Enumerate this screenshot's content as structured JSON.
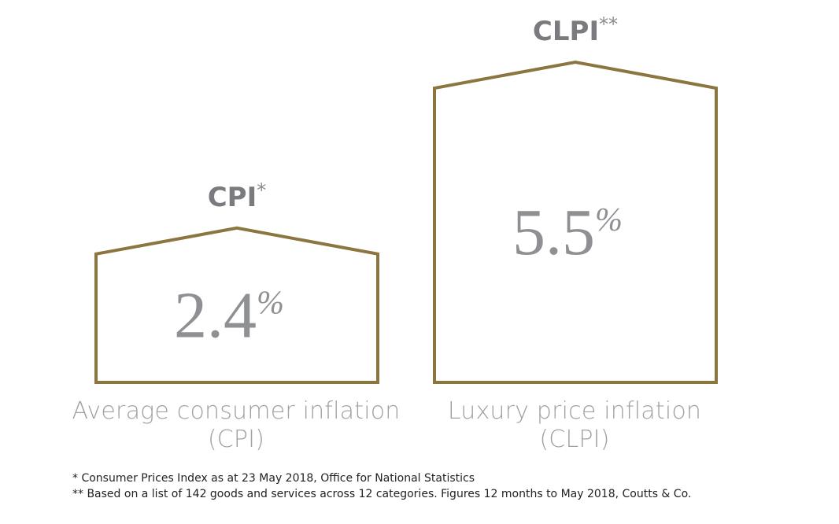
{
  "chart_data": {
    "type": "bar",
    "categories": [
      "CPI",
      "CLPI"
    ],
    "values": [
      2.4,
      5.5
    ],
    "unit": "%",
    "series_marks": [
      "*",
      "**"
    ],
    "value_labels": [
      "2.4",
      "5.5"
    ],
    "captions": [
      [
        "Average consumer inflation",
        "(CPI)"
      ],
      [
        "Luxury price inflation",
        "(CLPI)"
      ]
    ],
    "bar_color": "#8b7640",
    "text_color": "#7a7b7e"
  },
  "footnotes": [
    "* Consumer Prices Index as at 23 May 2018, Office for National Statistics",
    "** Based on a list of 142 goods and services across 12 categories. Figures 12 months to May 2018, Coutts & Co."
  ]
}
